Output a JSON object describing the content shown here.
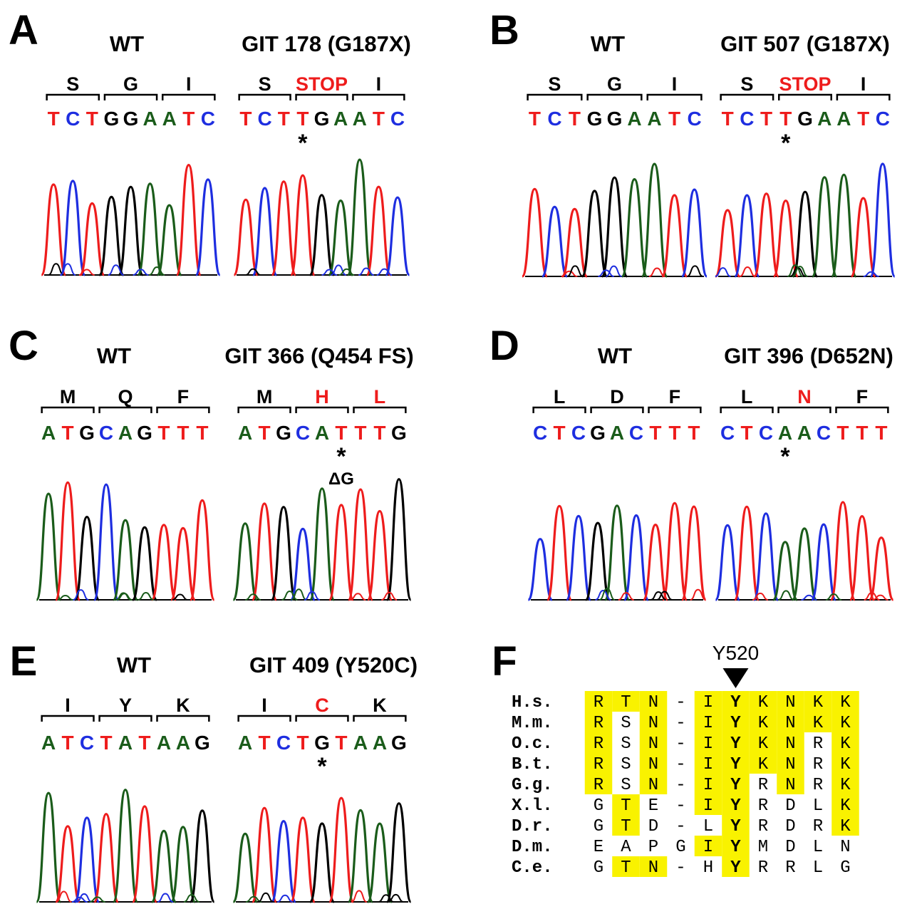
{
  "colors": {
    "A": "#1a5c1a",
    "C": "#1e2ee0",
    "G": "#000000",
    "T": "#ee1c1c",
    "highlight": "#f9f200",
    "mutant": "#ee1c1c"
  },
  "panels": [
    {
      "letter": "A",
      "wt": {
        "title": "WT",
        "codons": [
          "S",
          "G",
          "I"
        ],
        "seq": "TCTGGAATC"
      },
      "mut": {
        "title": "GIT 178 (G187X)",
        "codons": [
          "S",
          "STOP",
          "I"
        ],
        "seq": "TCTTGAATC",
        "mutated_codon": 1,
        "star_index": 3,
        "note": ""
      }
    },
    {
      "letter": "B",
      "wt": {
        "title": "WT",
        "codons": [
          "S",
          "G",
          "I"
        ],
        "seq": "TCTGGAATC"
      },
      "mut": {
        "title": "GIT 507 (G187X)",
        "codons": [
          "S",
          "STOP",
          "I"
        ],
        "seq": "TCTTGAATC",
        "mutated_codon": 1,
        "star_index": 3,
        "note": ""
      }
    },
    {
      "letter": "C",
      "wt": {
        "title": "WT",
        "codons": [
          "M",
          "Q",
          "F"
        ],
        "seq": "ATGCAGTTT"
      },
      "mut": {
        "title": "GIT 366 (Q454 FS)",
        "codons": [
          "M",
          "H",
          "L"
        ],
        "seq": "ATGCATTTG",
        "mutated_codon": [
          1,
          2
        ],
        "star_index": 5,
        "note": "ΔG"
      }
    },
    {
      "letter": "D",
      "wt": {
        "title": "WT",
        "codons": [
          "L",
          "D",
          "F"
        ],
        "seq": "CTCGACTTT"
      },
      "mut": {
        "title": "GIT 396 (D652N)",
        "codons": [
          "L",
          "N",
          "F"
        ],
        "seq": "CTCAACTTT",
        "mutated_codon": 1,
        "star_index": 3,
        "note": ""
      }
    },
    {
      "letter": "E",
      "wt": {
        "title": "WT",
        "codons": [
          "I",
          "Y",
          "K"
        ],
        "seq": "ATCTATAAG"
      },
      "mut": {
        "title": "GIT 409 (Y520C)",
        "codons": [
          "I",
          "C",
          "K"
        ],
        "seq": "ATCTGTAAG",
        "mutated_codon": 1,
        "star_index": 4,
        "note": ""
      }
    }
  ],
  "alignment": {
    "letter": "F",
    "marker": "Y520",
    "rows": [
      {
        "species": "H.s.",
        "residues": [
          "R",
          "T",
          "N",
          "-",
          "I",
          "Y",
          "K",
          "N",
          "K",
          "K"
        ],
        "highlight": [
          1,
          1,
          1,
          0,
          1,
          1,
          1,
          1,
          1,
          1
        ]
      },
      {
        "species": "M.m.",
        "residues": [
          "R",
          "S",
          "N",
          "-",
          "I",
          "Y",
          "K",
          "N",
          "K",
          "K"
        ],
        "highlight": [
          1,
          0,
          1,
          0,
          1,
          1,
          1,
          1,
          1,
          1
        ]
      },
      {
        "species": "O.c.",
        "residues": [
          "R",
          "S",
          "N",
          "-",
          "I",
          "Y",
          "K",
          "N",
          "R",
          "K"
        ],
        "highlight": [
          1,
          0,
          1,
          0,
          1,
          1,
          1,
          1,
          0,
          1
        ]
      },
      {
        "species": "B.t.",
        "residues": [
          "R",
          "S",
          "N",
          "-",
          "I",
          "Y",
          "K",
          "N",
          "R",
          "K"
        ],
        "highlight": [
          1,
          0,
          1,
          0,
          1,
          1,
          1,
          1,
          0,
          1
        ]
      },
      {
        "species": "G.g.",
        "residues": [
          "R",
          "S",
          "N",
          "-",
          "I",
          "Y",
          "R",
          "N",
          "R",
          "K"
        ],
        "highlight": [
          1,
          0,
          1,
          0,
          1,
          1,
          0,
          1,
          0,
          1
        ]
      },
      {
        "species": "X.l.",
        "residues": [
          "G",
          "T",
          "E",
          "-",
          "I",
          "Y",
          "R",
          "D",
          "L",
          "K"
        ],
        "highlight": [
          0,
          1,
          0,
          0,
          1,
          1,
          0,
          0,
          0,
          1
        ]
      },
      {
        "species": "D.r.",
        "residues": [
          "G",
          "T",
          "D",
          "-",
          "L",
          "Y",
          "R",
          "D",
          "R",
          "K"
        ],
        "highlight": [
          0,
          1,
          0,
          0,
          0,
          1,
          0,
          0,
          0,
          1
        ]
      },
      {
        "species": "D.m.",
        "residues": [
          "E",
          "A",
          "P",
          "G",
          "I",
          "Y",
          "M",
          "D",
          "L",
          "N"
        ],
        "highlight": [
          0,
          0,
          0,
          0,
          1,
          1,
          0,
          0,
          0,
          0
        ]
      },
      {
        "species": "C.e.",
        "residues": [
          "G",
          "T",
          "N",
          "-",
          "H",
          "Y",
          "R",
          "R",
          "L",
          "G"
        ],
        "highlight": [
          0,
          1,
          1,
          0,
          0,
          1,
          0,
          0,
          0,
          0
        ]
      }
    ]
  }
}
